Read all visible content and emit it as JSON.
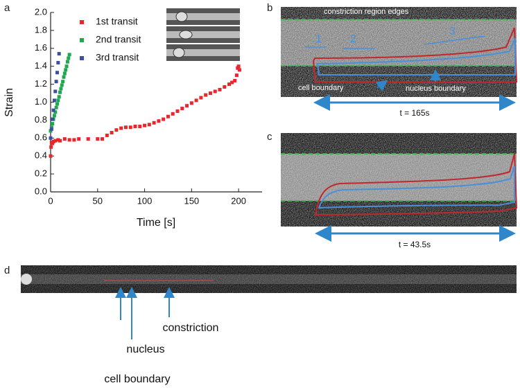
{
  "chart_data": {
    "type": "scatter",
    "xlabel": "Time [s]",
    "ylabel": "Strain",
    "xlim": [
      0,
      225
    ],
    "xticks": [
      0,
      50,
      100,
      150,
      200
    ],
    "ylim": [
      0,
      2.0
    ],
    "yticks": [
      {
        "value": 0,
        "label": "0.0"
      },
      0.2,
      0.4,
      0.6,
      0.8,
      {
        "value": 1,
        "label": "1.0"
      },
      1.2,
      1.4,
      1.6,
      1.8,
      {
        "value": 2,
        "label": "2.0"
      }
    ],
    "legend": "upper left",
    "series": [
      {
        "name": "1st transit",
        "color": "#e8262b",
        "x": [
          0,
          0.5,
          1,
          2,
          3,
          5,
          8,
          10,
          15,
          20,
          25,
          30,
          40,
          50,
          55,
          60,
          65,
          70,
          75,
          80,
          85,
          90,
          95,
          100,
          105,
          110,
          115,
          120,
          125,
          130,
          135,
          140,
          145,
          150,
          155,
          160,
          165,
          170,
          175,
          180,
          185,
          190,
          193,
          196,
          198,
          199,
          200,
          201
        ],
        "values": [
          0.4,
          0.5,
          0.55,
          0.54,
          0.56,
          0.57,
          0.58,
          0.57,
          0.59,
          0.58,
          0.58,
          0.59,
          0.59,
          0.59,
          0.59,
          0.63,
          0.66,
          0.69,
          0.71,
          0.72,
          0.72,
          0.73,
          0.73,
          0.74,
          0.75,
          0.77,
          0.79,
          0.81,
          0.84,
          0.87,
          0.9,
          0.93,
          0.96,
          0.99,
          1.02,
          1.05,
          1.08,
          1.1,
          1.12,
          1.14,
          1.17,
          1.2,
          1.22,
          1.24,
          1.3,
          1.38,
          1.4,
          1.36
        ]
      },
      {
        "name": "2nd transit",
        "color": "#1fa84f",
        "x": [
          0,
          1,
          2,
          3,
          4,
          5,
          6,
          7,
          8,
          9,
          10,
          11,
          12,
          13,
          14,
          15,
          16,
          17,
          18,
          19,
          20
        ],
        "values": [
          0.68,
          0.72,
          0.76,
          0.81,
          0.85,
          0.89,
          0.94,
          0.98,
          1.02,
          1.06,
          1.11,
          1.15,
          1.19,
          1.23,
          1.28,
          1.32,
          1.36,
          1.4,
          1.45,
          1.49,
          1.53
        ]
      },
      {
        "name": "3rd transit",
        "color": "#3c4fa0",
        "x": [
          0,
          1,
          2,
          3,
          4,
          5,
          6,
          7,
          8,
          9
        ],
        "values": [
          0.6,
          0.7,
          0.81,
          0.91,
          1.02,
          1.12,
          1.23,
          1.33,
          1.44,
          1.54
        ]
      }
    ]
  },
  "panel_labels": [
    "a",
    "b",
    "c",
    "d"
  ],
  "panel_b": {
    "edges": "constriction region edges",
    "regions": [
      "1",
      "2",
      "3"
    ],
    "cell": "cell boundary",
    "nucleus": "nucleus boundary",
    "duration": "t = 165s"
  },
  "panel_c": {
    "duration": "t = 43.5s"
  },
  "panel_d": {
    "labels": [
      "cell boundary",
      "nucleus",
      "constriction"
    ]
  }
}
